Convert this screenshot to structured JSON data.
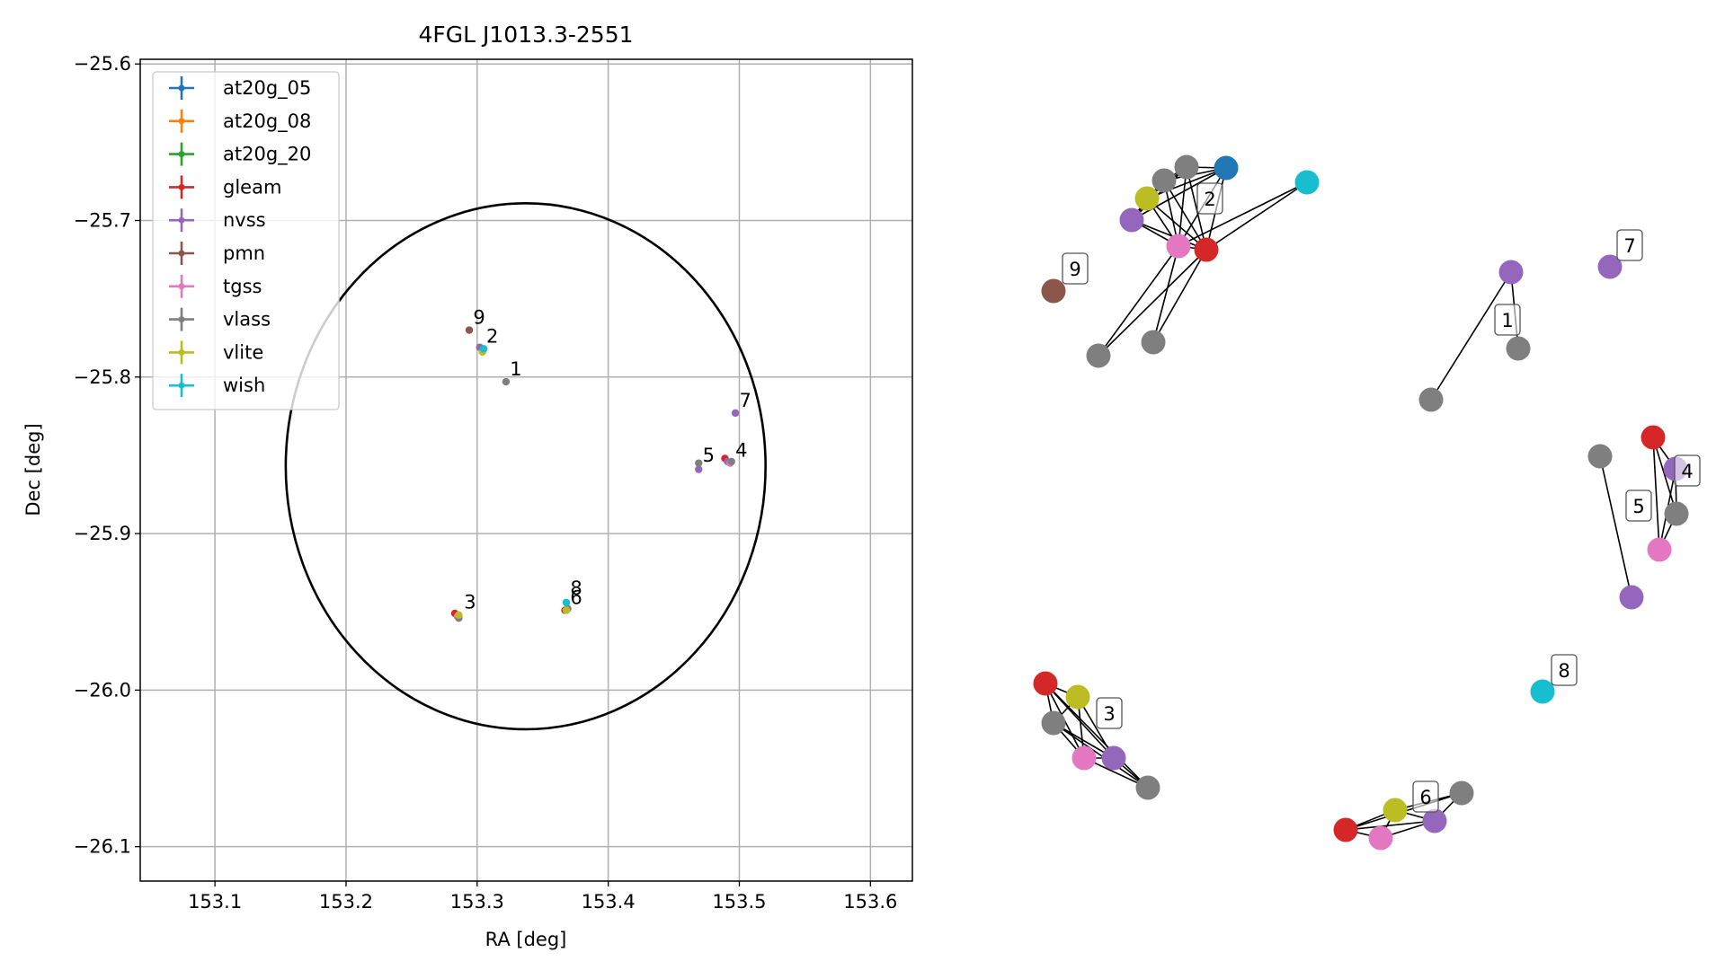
{
  "chart_data": [
    {
      "type": "scatter",
      "title": "4FGL J1013.3-2551",
      "xlabel": "RA [deg]",
      "ylabel": "Dec [deg]",
      "xlim": [
        153.043,
        153.632
      ],
      "ylim": [
        -26.122,
        -25.597
      ],
      "xticks": [
        153.1,
        153.2,
        153.3,
        153.4,
        153.5,
        153.6
      ],
      "xtick_labels": [
        "153.1",
        "153.2",
        "153.3",
        "153.4",
        "153.5",
        "153.6"
      ],
      "yticks": [
        -25.6,
        -25.7,
        -25.8,
        -25.9,
        -26.0,
        -26.1
      ],
      "ytick_labels": [
        "−25.6",
        "−25.7",
        "−25.8",
        "−25.9",
        "−26.0",
        "−26.1"
      ],
      "grid": true,
      "legend_position": "top-left",
      "series": [
        {
          "name": "at20g_05",
          "color": "#1f77b4",
          "points": [
            [
              153.305,
              -25.782
            ]
          ]
        },
        {
          "name": "at20g_08",
          "color": "#ff7f0e",
          "points": []
        },
        {
          "name": "at20g_20",
          "color": "#2ca02c",
          "points": []
        },
        {
          "name": "gleam",
          "color": "#d62728",
          "points": [
            [
              153.304,
              -25.783
            ],
            [
              153.283,
              -25.951
            ],
            [
              153.367,
              -25.949
            ],
            [
              153.489,
              -25.852
            ]
          ]
        },
        {
          "name": "nvss",
          "color": "#9467bd",
          "points": [
            [
              153.302,
              -25.781
            ],
            [
              153.286,
              -25.953
            ],
            [
              153.369,
              -25.948
            ],
            [
              153.497,
              -25.823
            ],
            [
              153.469,
              -25.859
            ],
            [
              153.491,
              -25.854
            ]
          ]
        },
        {
          "name": "pmn",
          "color": "#8c564b",
          "points": [
            [
              153.294,
              -25.77
            ]
          ]
        },
        {
          "name": "tgss",
          "color": "#e377c2",
          "points": [
            [
              153.304,
              -25.783
            ],
            [
              153.285,
              -25.953
            ],
            [
              153.368,
              -25.949
            ],
            [
              153.493,
              -25.855
            ]
          ]
        },
        {
          "name": "vlass",
          "color": "#7f7f7f",
          "points": [
            [
              153.322,
              -25.803
            ],
            [
              153.304,
              -25.782
            ],
            [
              153.286,
              -25.954
            ],
            [
              153.369,
              -25.948
            ],
            [
              153.494,
              -25.854
            ],
            [
              153.469,
              -25.855
            ]
          ]
        },
        {
          "name": "vlite",
          "color": "#bcbd22",
          "points": [
            [
              153.304,
              -25.784
            ],
            [
              153.286,
              -25.952
            ],
            [
              153.368,
              -25.949
            ]
          ]
        },
        {
          "name": "wish",
          "color": "#17becf",
          "points": [
            [
              153.305,
              -25.782
            ],
            [
              153.368,
              -25.944
            ]
          ]
        }
      ],
      "point_labels": [
        {
          "text": "1",
          "x": 153.325,
          "y": -25.799
        },
        {
          "text": "2",
          "x": 153.307,
          "y": -25.778
        },
        {
          "text": "3",
          "x": 153.29,
          "y": -25.948
        },
        {
          "text": "4",
          "x": 153.497,
          "y": -25.851
        },
        {
          "text": "5",
          "x": 153.472,
          "y": -25.854
        },
        {
          "text": "6",
          "x": 153.371,
          "y": -25.945
        },
        {
          "text": "7",
          "x": 153.5,
          "y": -25.819
        },
        {
          "text": "8",
          "x": 153.371,
          "y": -25.939
        },
        {
          "text": "9",
          "x": 153.297,
          "y": -25.766
        }
      ],
      "ellipse": {
        "center_ra": 153.337,
        "center_dec": -25.857,
        "ra_half_width": 0.183,
        "dec_half_height": 0.168,
        "color": "#000000"
      }
    },
    {
      "type": "network",
      "nodes": [
        {
          "id": "n1",
          "color": "#1f77b4"
        },
        {
          "id": "n2",
          "color": "#7f7f7f"
        },
        {
          "id": "n3",
          "color": "#7f7f7f"
        },
        {
          "id": "n4",
          "color": "#bcbd22"
        },
        {
          "id": "n5",
          "color": "#9467bd"
        },
        {
          "id": "n6",
          "color": "#e377c2"
        },
        {
          "id": "n7",
          "color": "#d62728"
        },
        {
          "id": "n8",
          "color": "#17becf"
        },
        {
          "id": "n9",
          "color": "#7f7f7f"
        },
        {
          "id": "n10",
          "color": "#7f7f7f"
        },
        {
          "id": "n11",
          "color": "#8c564b"
        },
        {
          "id": "n12",
          "color": "#9467bd"
        },
        {
          "id": "n13",
          "color": "#7f7f7f"
        },
        {
          "id": "n14",
          "color": "#7f7f7f"
        },
        {
          "id": "n15",
          "color": "#9467bd"
        },
        {
          "id": "n16",
          "color": "#d62728"
        },
        {
          "id": "n17",
          "color": "#7f7f7f"
        },
        {
          "id": "n18",
          "color": "#9467bd"
        },
        {
          "id": "n19",
          "color": "#7f7f7f"
        },
        {
          "id": "n20",
          "color": "#e377c2"
        },
        {
          "id": "n21",
          "color": "#9467bd"
        },
        {
          "id": "n22",
          "color": "#17becf"
        },
        {
          "id": "n23",
          "color": "#d62728"
        },
        {
          "id": "n24",
          "color": "#bcbd22"
        },
        {
          "id": "n25",
          "color": "#7f7f7f"
        },
        {
          "id": "n26",
          "color": "#e377c2"
        },
        {
          "id": "n27",
          "color": "#9467bd"
        },
        {
          "id": "n28",
          "color": "#7f7f7f"
        },
        {
          "id": "n29",
          "color": "#d62728"
        },
        {
          "id": "n30",
          "color": "#e377c2"
        },
        {
          "id": "n31",
          "color": "#bcbd22"
        },
        {
          "id": "n32",
          "color": "#9467bd"
        },
        {
          "id": "n33",
          "color": "#7f7f7f"
        }
      ],
      "edges": [
        [
          "n1",
          "n2"
        ],
        [
          "n1",
          "n3"
        ],
        [
          "n1",
          "n4"
        ],
        [
          "n1",
          "n5"
        ],
        [
          "n1",
          "n6"
        ],
        [
          "n1",
          "n7"
        ],
        [
          "n2",
          "n3"
        ],
        [
          "n2",
          "n4"
        ],
        [
          "n2",
          "n5"
        ],
        [
          "n2",
          "n6"
        ],
        [
          "n2",
          "n7"
        ],
        [
          "n3",
          "n4"
        ],
        [
          "n3",
          "n5"
        ],
        [
          "n3",
          "n6"
        ],
        [
          "n3",
          "n7"
        ],
        [
          "n4",
          "n5"
        ],
        [
          "n4",
          "n6"
        ],
        [
          "n4",
          "n7"
        ],
        [
          "n5",
          "n6"
        ],
        [
          "n5",
          "n7"
        ],
        [
          "n6",
          "n7"
        ],
        [
          "n6",
          "n8"
        ],
        [
          "n7",
          "n8"
        ],
        [
          "n6",
          "n9"
        ],
        [
          "n7",
          "n9"
        ],
        [
          "n6",
          "n10"
        ],
        [
          "n7",
          "n10"
        ],
        [
          "n12",
          "n14"
        ],
        [
          "n13",
          "n12"
        ],
        [
          "n16",
          "n17"
        ],
        [
          "n16",
          "n18"
        ],
        [
          "n16",
          "n20"
        ],
        [
          "n17",
          "n18"
        ],
        [
          "n17",
          "n20"
        ],
        [
          "n18",
          "n20"
        ],
        [
          "n19",
          "n21"
        ],
        [
          "n23",
          "n24"
        ],
        [
          "n23",
          "n25"
        ],
        [
          "n23",
          "n26"
        ],
        [
          "n23",
          "n27"
        ],
        [
          "n23",
          "n28"
        ],
        [
          "n24",
          "n25"
        ],
        [
          "n24",
          "n26"
        ],
        [
          "n24",
          "n27"
        ],
        [
          "n25",
          "n26"
        ],
        [
          "n25",
          "n27"
        ],
        [
          "n25",
          "n28"
        ],
        [
          "n26",
          "n27"
        ],
        [
          "n26",
          "n28"
        ],
        [
          "n27",
          "n28"
        ],
        [
          "n29",
          "n30"
        ],
        [
          "n29",
          "n31"
        ],
        [
          "n29",
          "n32"
        ],
        [
          "n29",
          "n33"
        ],
        [
          "n30",
          "n31"
        ],
        [
          "n30",
          "n32"
        ],
        [
          "n31",
          "n32"
        ],
        [
          "n31",
          "n33"
        ],
        [
          "n32",
          "n33"
        ]
      ],
      "labels": [
        {
          "text": "1"
        },
        {
          "text": "2"
        },
        {
          "text": "3"
        },
        {
          "text": "4"
        },
        {
          "text": "5"
        },
        {
          "text": "6"
        },
        {
          "text": "7"
        },
        {
          "text": "8"
        },
        {
          "text": "9"
        }
      ]
    }
  ]
}
